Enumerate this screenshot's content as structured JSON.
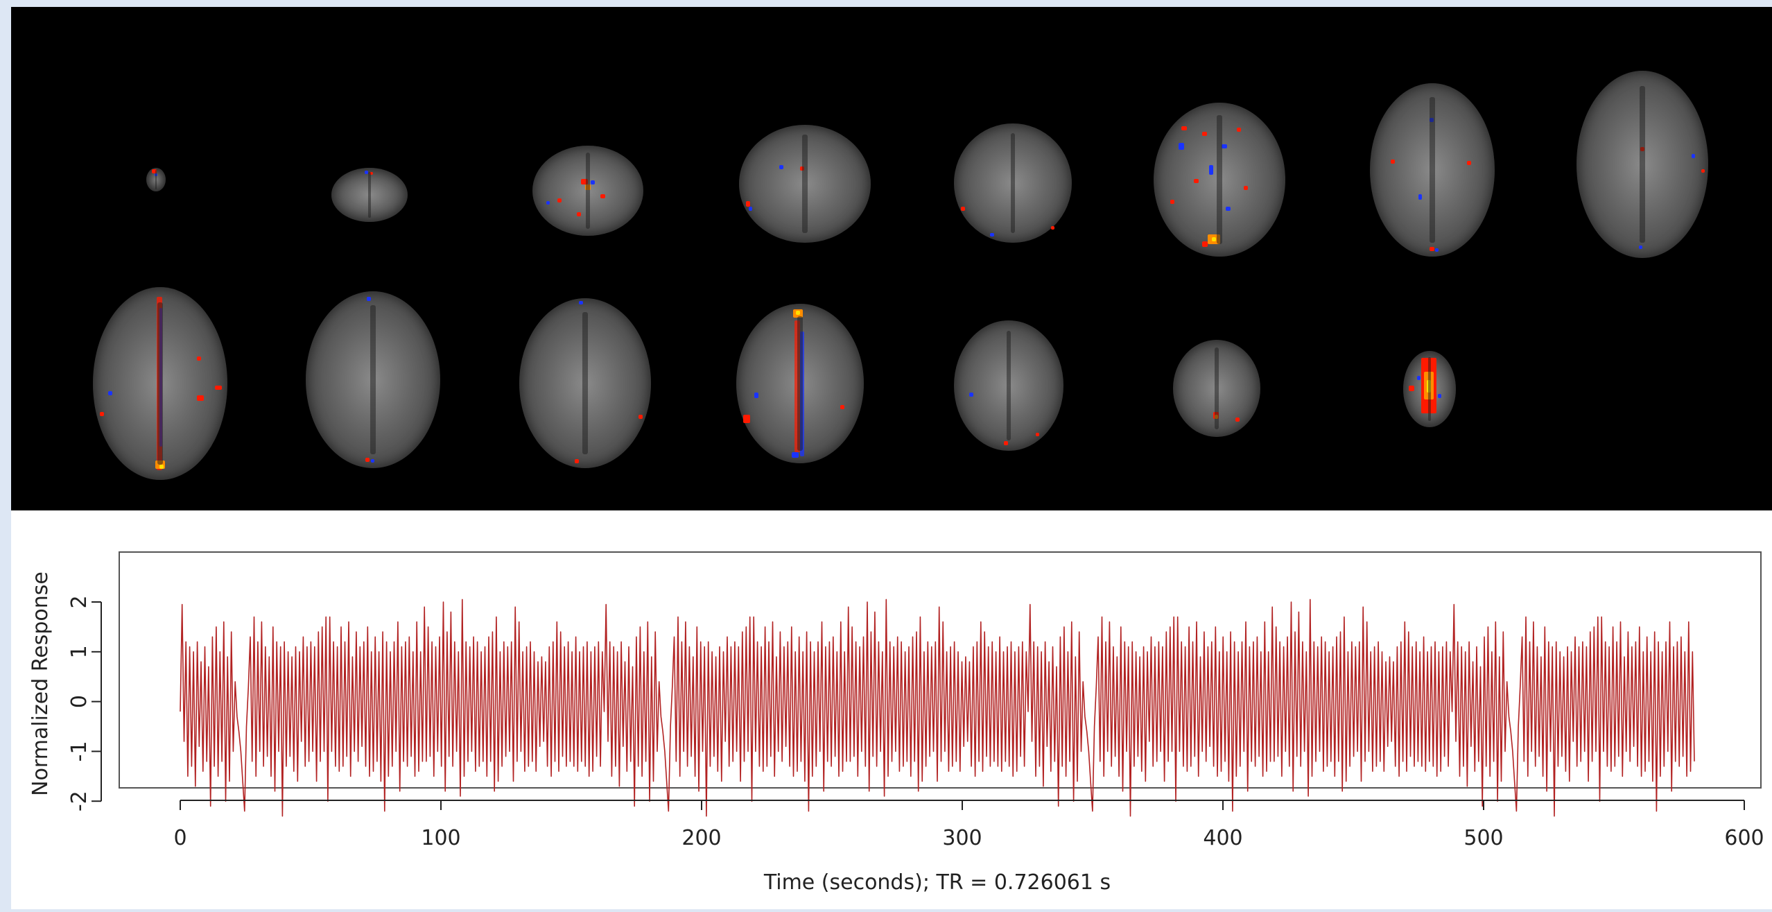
{
  "chart_data": {
    "type": "line",
    "xlabel": "Time (seconds); TR = 0.726061 s",
    "ylabel": "Normalized Response",
    "xlim": [
      0,
      600
    ],
    "ylim": [
      -2.3,
      2.1
    ],
    "x_ticks": [
      "0",
      "100",
      "200",
      "300",
      "400",
      "500",
      "600"
    ],
    "y_ticks": [
      "2",
      "1",
      "0",
      "-1",
      "-2"
    ],
    "series_color": "#b22222",
    "grid": false,
    "tr_seconds": 0.726061,
    "n_points": 802,
    "series": [
      {
        "values": [
          -0.2,
          1.95,
          -0.8,
          1.2,
          -1.5,
          1.1,
          -1.3,
          1.0,
          -1.7,
          1.2,
          -0.9,
          0.8,
          -1.4,
          1.1,
          -1.2,
          0.7,
          -2.1,
          1.3,
          -1.3,
          1.5,
          -1.5,
          1.0,
          -1.2,
          1.6,
          -2.0,
          0.9,
          -1.6,
          1.4,
          -1.0,
          0.4,
          -0.3,
          -0.6,
          -1.0,
          -1.6,
          -2.2,
          -0.5,
          0.3,
          1.3,
          -1.2,
          1.7,
          -1.5,
          1.2,
          -1.0,
          1.6,
          -1.3,
          1.1,
          -1.1,
          0.9,
          -1.5,
          1.5,
          -1.8,
          1.2,
          -1.0,
          1.1,
          -2.3,
          1.2,
          -1.3,
          1.0,
          -1.1,
          0.9,
          -1.4,
          1.1,
          -1.6,
          1.0,
          -0.8,
          1.3,
          -1.3,
          1.1,
          -1.2,
          1.2,
          -1.0,
          1.1,
          -1.6,
          1.4,
          -1.2,
          1.5,
          -1.0,
          1.7,
          -2.0,
          1.7,
          -1.0,
          1.2,
          -1.3,
          1.1,
          -1.4,
          1.5,
          -1.3,
          1.2,
          -1.1,
          1.6,
          -1.5,
          0.9,
          -1.0,
          1.4,
          -1.2,
          1.1,
          -0.9,
          1.2,
          -1.3,
          1.5,
          -1.5,
          1.0,
          -1.4,
          1.3,
          -1.2,
          1.0,
          -1.6,
          1.4,
          -2.2,
          1.2,
          -1.5,
          1.0,
          -1.3,
          1.2,
          -1.0,
          1.6,
          -1.8,
          1.1,
          -1.2,
          1.2,
          -1.3,
          1.3,
          -1.1,
          1.0,
          -1.5,
          1.6,
          -1.4,
          1.0,
          -1.2,
          1.9,
          -1.2,
          1.5,
          -1.1,
          1.2,
          -1.5,
          1.1,
          -1.0,
          1.3,
          -1.3,
          2.0,
          -1.8,
          1.4,
          -1.1,
          1.8,
          -1.3,
          1.2,
          -1.0,
          1.0,
          -1.9,
          2.05,
          -1.5,
          1.2,
          -1.2,
          1.1,
          -1.0,
          1.3,
          -1.4,
          1.2,
          -1.3,
          1.0,
          -1.2,
          1.1,
          -1.5,
          1.3,
          -1.2,
          1.4,
          -1.8,
          1.7,
          -1.6,
          1.0,
          -1.3,
          1.2,
          -1.1,
          1.1,
          -1.0,
          1.2,
          -1.6,
          1.9,
          -1.2,
          1.6,
          -1.0,
          1.0,
          -1.4,
          1.1,
          -1.3,
          1.2,
          -1.2,
          1.0,
          -1.4,
          0.8,
          -0.9,
          0.9,
          -0.8,
          0.8,
          -1.3,
          1.1,
          -1.5,
          1.2,
          -1.2,
          1.6,
          -1.4,
          1.4,
          -1.1,
          1.1,
          -1.3,
          1.2,
          -1.2,
          1.0,
          -1.3,
          1.3,
          -1.4,
          1.0,
          -1.2,
          1.1,
          -1.3,
          1.2,
          -1.5,
          1.0,
          -1.4,
          1.1,
          -1.1,
          1.2,
          -1.3,
          1.0
        ]
      }
    ]
  }
}
